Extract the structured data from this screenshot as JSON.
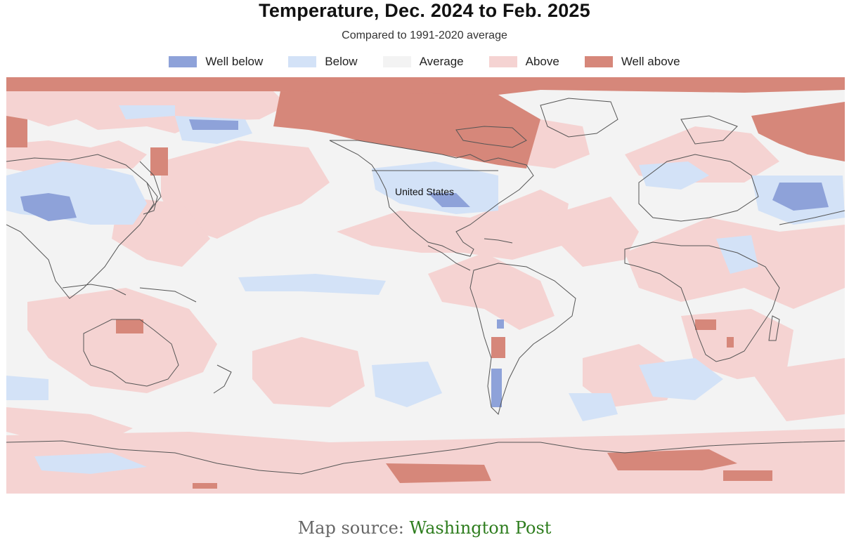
{
  "header": {
    "title": "Temperature, Dec. 2024 to Feb. 2025",
    "subtitle": "Compared to 1991-2020 average"
  },
  "legend": [
    {
      "label": "Well below",
      "color": "#8ea2d9"
    },
    {
      "label": "Below",
      "color": "#d3e2f7"
    },
    {
      "label": "Average",
      "color": "#f3f3f3"
    },
    {
      "label": "Above",
      "color": "#f5d3d2"
    },
    {
      "label": "Well above",
      "color": "#d6877a"
    }
  ],
  "map": {
    "label_us": "United States",
    "ocean_color": "#f3f3f3",
    "coastline_color": "#555555"
  },
  "footer": {
    "source_prefix": "Map source: ",
    "source_link": "Washington Post",
    "link_color": "#2e7d1e"
  }
}
